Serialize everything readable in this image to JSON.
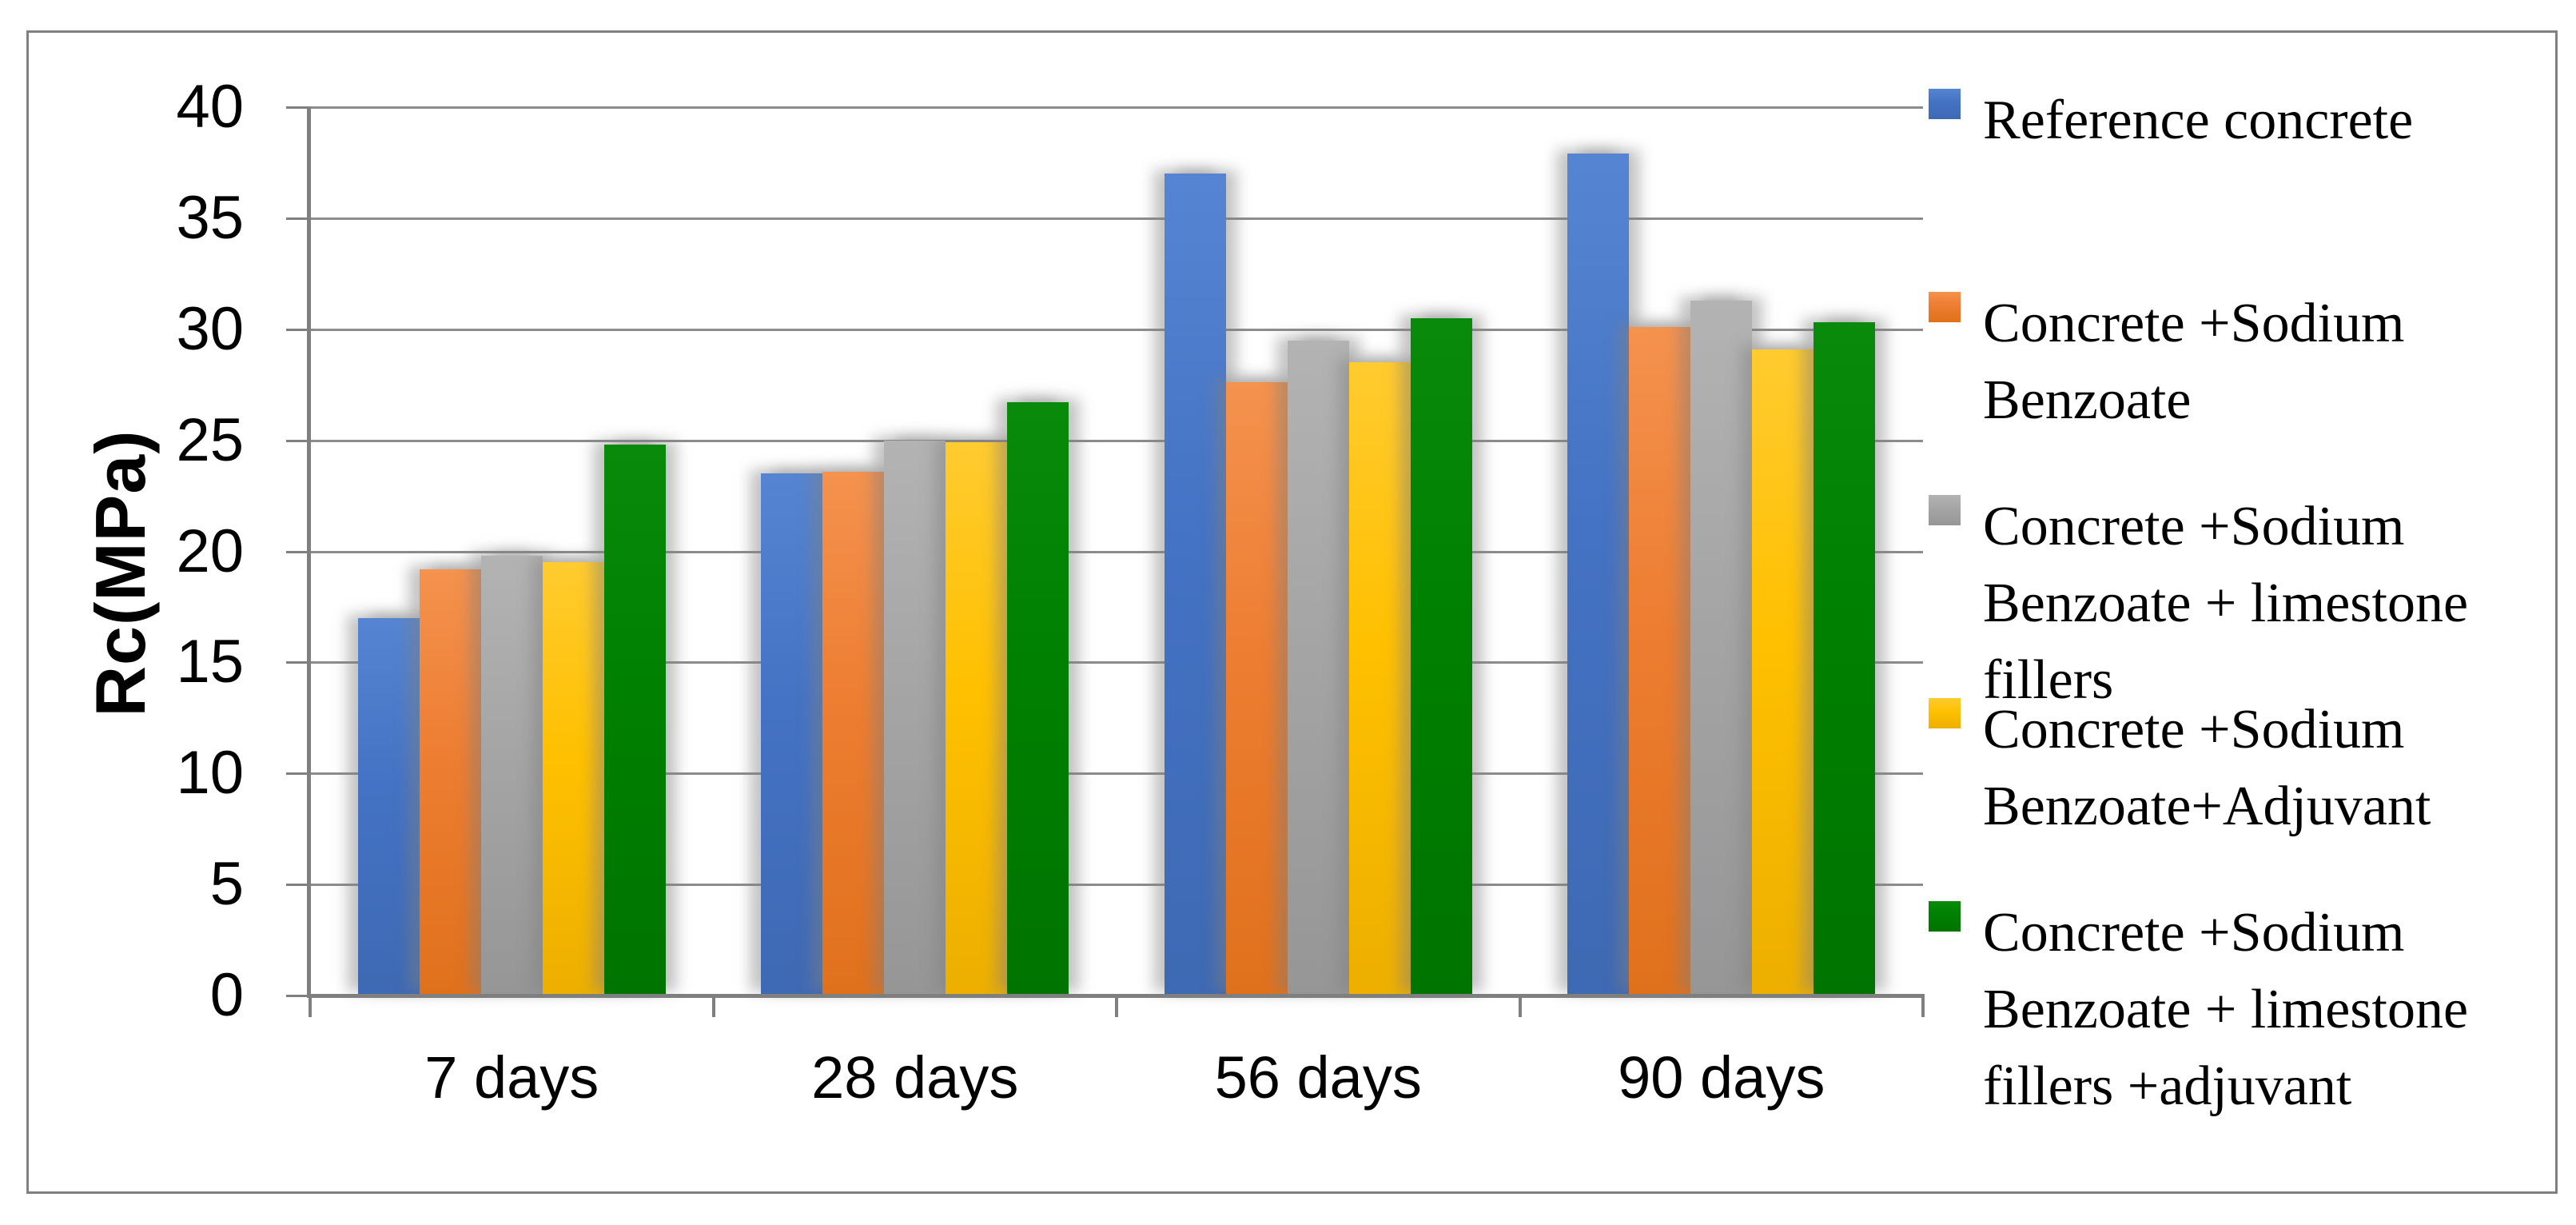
{
  "chart_data": {
    "type": "bar",
    "title": "",
    "categories": [
      "7 days",
      "28 days",
      "56 days",
      "90 days"
    ],
    "series": [
      {
        "name": "Reference concrete",
        "legend_lines": [
          "Reference concrete"
        ],
        "color": "#4472C4",
        "gradient": [
          "#5585D2",
          "#3E69B3"
        ],
        "values": [
          17.0,
          23.5,
          37.0,
          37.9
        ]
      },
      {
        "name": "Concrete +Sodium Benzoate",
        "legend_lines": [
          "Concrete +Sodium",
          "Benzoate"
        ],
        "color": "#ED7D31",
        "gradient": [
          "#F4924E",
          "#E0711C"
        ],
        "values": [
          19.2,
          23.6,
          27.6,
          30.1
        ]
      },
      {
        "name": "Concrete +Sodium Benzoate + limestone fillers",
        "legend_lines": [
          "Concrete +Sodium",
          "Benzoate + limestone",
          "fillers"
        ],
        "color": "#A5A5A5",
        "gradient": [
          "#B3B3B3",
          "#969696"
        ],
        "values": [
          19.8,
          25.0,
          29.5,
          31.3
        ]
      },
      {
        "name": "Concrete +Sodium Benzoate+Adjuvant",
        "legend_lines": [
          "Concrete +Sodium",
          "Benzoate+Adjuvant"
        ],
        "color": "#FFC000",
        "gradient": [
          "#FFCB2F",
          "#EDAF00"
        ],
        "values": [
          19.5,
          24.9,
          28.5,
          29.1
        ]
      },
      {
        "name": "Concrete +Sodium Benzoate + limestone fillers +adjuvant",
        "legend_lines": [
          "Concrete +Sodium",
          "Benzoate + limestone",
          "fillers +adjuvant"
        ],
        "color": "#008000",
        "gradient": [
          "#0A8A0A",
          "#007400"
        ],
        "values": [
          24.8,
          26.7,
          30.5,
          30.3
        ]
      }
    ],
    "xlabel": "",
    "ylabel": "Rc(MPa)",
    "ylim": [
      0,
      40
    ],
    "ytick_step": 5,
    "ytick_labels": [
      "0",
      "5",
      "10",
      "15",
      "20",
      "25",
      "30",
      "35",
      "40"
    ],
    "grid": true,
    "legend_position": "right"
  },
  "colors": {
    "axis": "#7F7F7F",
    "gridline": "#8C8C8C",
    "text": "#000000",
    "frame_border": "#808080",
    "background": "#FFFFFF"
  }
}
